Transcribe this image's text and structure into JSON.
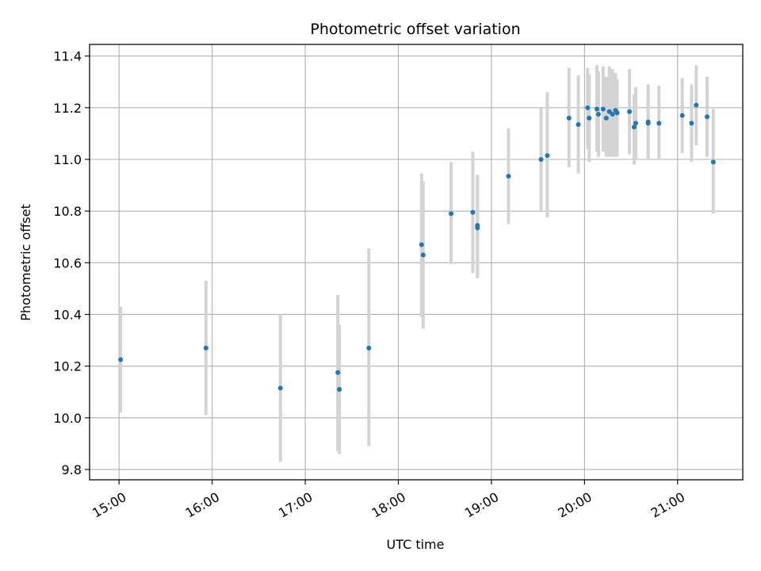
{
  "chart_data": {
    "type": "scatter",
    "title": "Photometric offset variation",
    "xlabel": "UTC time",
    "ylabel": "Photometric offset",
    "xlim": [
      "14:41",
      "21:42"
    ],
    "ylim": [
      9.76,
      11.445
    ],
    "grid": true,
    "x_ticks": [
      "15:00",
      "16:00",
      "17:00",
      "18:00",
      "19:00",
      "20:00",
      "21:00"
    ],
    "y_ticks": [
      9.8,
      10.0,
      10.2,
      10.4,
      10.6,
      10.8,
      11.0,
      11.2,
      11.4
    ],
    "colors": {
      "point": "#1f77b4",
      "errorbar": "#d3d3d3",
      "grid": "#b0b0b0"
    },
    "series": [
      {
        "points": [
          {
            "x": "15:01",
            "y": 10.225,
            "lo": 10.02,
            "hi": 10.43
          },
          {
            "x": "15:56",
            "y": 10.27,
            "lo": 10.01,
            "hi": 10.53
          },
          {
            "x": "16:44",
            "y": 10.115,
            "lo": 9.83,
            "hi": 10.4
          },
          {
            "x": "17:21",
            "y": 10.175,
            "lo": 9.87,
            "hi": 10.475
          },
          {
            "x": "17:22",
            "y": 10.11,
            "lo": 9.86,
            "hi": 10.36
          },
          {
            "x": "17:41",
            "y": 10.27,
            "lo": 9.89,
            "hi": 10.655
          },
          {
            "x": "18:15",
            "y": 10.67,
            "lo": 10.39,
            "hi": 10.945
          },
          {
            "x": "18:16",
            "y": 10.63,
            "lo": 10.345,
            "hi": 10.915
          },
          {
            "x": "18:34",
            "y": 10.79,
            "lo": 10.595,
            "hi": 10.99
          },
          {
            "x": "18:48",
            "y": 10.795,
            "lo": 10.56,
            "hi": 11.03
          },
          {
            "x": "18:51",
            "y": 10.735,
            "lo": 10.54,
            "hi": 10.94
          },
          {
            "x": "18:51",
            "y": 10.745,
            "lo": 10.55,
            "hi": 10.94
          },
          {
            "x": "19:11",
            "y": 10.935,
            "lo": 10.75,
            "hi": 11.12
          },
          {
            "x": "19:32",
            "y": 11.0,
            "lo": 10.8,
            "hi": 11.2
          },
          {
            "x": "19:36",
            "y": 11.015,
            "lo": 10.775,
            "hi": 11.26
          },
          {
            "x": "19:50",
            "y": 11.16,
            "lo": 10.97,
            "hi": 11.355
          },
          {
            "x": "19:56",
            "y": 11.135,
            "lo": 10.945,
            "hi": 11.325
          },
          {
            "x": "20:02",
            "y": 11.2,
            "lo": 11.04,
            "hi": 11.355
          },
          {
            "x": "20:03",
            "y": 11.16,
            "lo": 10.99,
            "hi": 11.33
          },
          {
            "x": "20:08",
            "y": 11.195,
            "lo": 11.03,
            "hi": 11.365
          },
          {
            "x": "20:09",
            "y": 11.175,
            "lo": 11.01,
            "hi": 11.34
          },
          {
            "x": "20:12",
            "y": 11.195,
            "lo": 11.03,
            "hi": 11.36
          },
          {
            "x": "20:14",
            "y": 11.16,
            "lo": 11.01,
            "hi": 11.32
          },
          {
            "x": "20:16",
            "y": 11.185,
            "lo": 11.01,
            "hi": 11.36
          },
          {
            "x": "20:18",
            "y": 11.175,
            "lo": 11.01,
            "hi": 11.35
          },
          {
            "x": "20:20",
            "y": 11.19,
            "lo": 11.01,
            "hi": 11.335
          },
          {
            "x": "20:21",
            "y": 11.18,
            "lo": 11.01,
            "hi": 11.31
          },
          {
            "x": "20:29",
            "y": 11.185,
            "lo": 11.02,
            "hi": 11.35
          },
          {
            "x": "20:32",
            "y": 11.125,
            "lo": 10.98,
            "hi": 11.25
          },
          {
            "x": "20:33",
            "y": 11.14,
            "lo": 11.0,
            "hi": 11.28
          },
          {
            "x": "20:41",
            "y": 11.145,
            "lo": 11.0,
            "hi": 11.29
          },
          {
            "x": "20:41",
            "y": 11.14,
            "lo": 11.0,
            "hi": 11.285
          },
          {
            "x": "20:48",
            "y": 11.14,
            "lo": 11.0,
            "hi": 11.285
          },
          {
            "x": "21:03",
            "y": 11.17,
            "lo": 11.025,
            "hi": 11.315
          },
          {
            "x": "21:09",
            "y": 11.14,
            "lo": 10.99,
            "hi": 11.29
          },
          {
            "x": "21:12",
            "y": 11.21,
            "lo": 11.055,
            "hi": 11.365
          },
          {
            "x": "21:19",
            "y": 11.165,
            "lo": 11.01,
            "hi": 11.32
          },
          {
            "x": "21:23",
            "y": 10.99,
            "lo": 10.79,
            "hi": 11.195
          }
        ]
      }
    ]
  }
}
